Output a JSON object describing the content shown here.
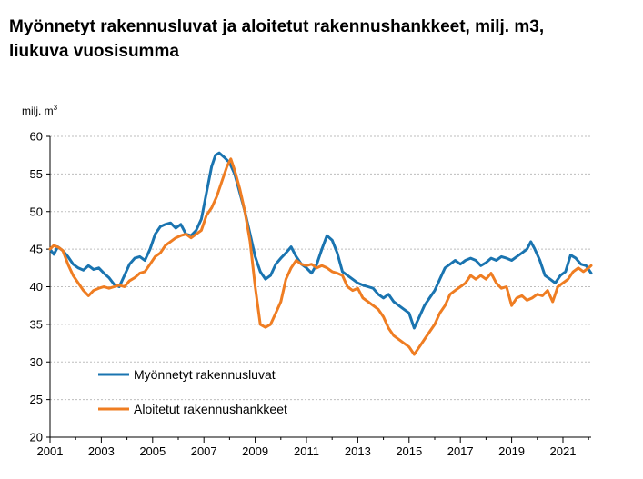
{
  "chart_data": {
    "type": "line",
    "title_line1": "Myönnetyt rakennusluvat ja aloitetut rakennushankkeet, milj. m3,",
    "title_line2": "liukuva vuosisumma",
    "ylabel": "milj. m",
    "ylabel_sup": "3",
    "xlabel": "",
    "ylim": [
      20,
      60
    ],
    "xlim": [
      2001,
      2022.1
    ],
    "yticks": [
      20,
      25,
      30,
      35,
      40,
      45,
      50,
      55,
      60
    ],
    "xticks": [
      2001,
      2003,
      2005,
      2007,
      2009,
      2011,
      2013,
      2015,
      2017,
      2019,
      2021
    ],
    "grid": true,
    "legend_position": "lower-left",
    "series": [
      {
        "name": "Myönnetyt rakennusluvat",
        "color": "#1a74b0",
        "points": [
          [
            2001.0,
            45.0
          ],
          [
            2001.15,
            44.3
          ],
          [
            2001.3,
            45.3
          ],
          [
            2001.5,
            44.8
          ],
          [
            2001.7,
            44.0
          ],
          [
            2001.9,
            43.0
          ],
          [
            2002.1,
            42.5
          ],
          [
            2002.3,
            42.2
          ],
          [
            2002.5,
            42.8
          ],
          [
            2002.7,
            42.3
          ],
          [
            2002.9,
            42.5
          ],
          [
            2003.1,
            41.8
          ],
          [
            2003.3,
            41.2
          ],
          [
            2003.5,
            40.3
          ],
          [
            2003.7,
            40.0
          ],
          [
            2003.9,
            41.5
          ],
          [
            2004.1,
            43.0
          ],
          [
            2004.3,
            43.8
          ],
          [
            2004.5,
            44.0
          ],
          [
            2004.7,
            43.5
          ],
          [
            2004.9,
            45.0
          ],
          [
            2005.1,
            47.0
          ],
          [
            2005.3,
            48.0
          ],
          [
            2005.5,
            48.3
          ],
          [
            2005.7,
            48.5
          ],
          [
            2005.9,
            47.8
          ],
          [
            2006.1,
            48.3
          ],
          [
            2006.3,
            47.0
          ],
          [
            2006.5,
            46.8
          ],
          [
            2006.7,
            47.5
          ],
          [
            2006.9,
            49.0
          ],
          [
            2007.1,
            52.5
          ],
          [
            2007.3,
            56.0
          ],
          [
            2007.45,
            57.5
          ],
          [
            2007.6,
            57.8
          ],
          [
            2007.8,
            57.2
          ],
          [
            2008.0,
            56.5
          ],
          [
            2008.2,
            55.0
          ],
          [
            2008.4,
            52.5
          ],
          [
            2008.6,
            50.0
          ],
          [
            2008.8,
            47.0
          ],
          [
            2009.0,
            44.0
          ],
          [
            2009.2,
            42.0
          ],
          [
            2009.4,
            41.0
          ],
          [
            2009.6,
            41.5
          ],
          [
            2009.8,
            43.0
          ],
          [
            2010.0,
            43.8
          ],
          [
            2010.2,
            44.5
          ],
          [
            2010.4,
            45.3
          ],
          [
            2010.6,
            44.0
          ],
          [
            2010.8,
            43.0
          ],
          [
            2011.0,
            42.5
          ],
          [
            2011.2,
            41.8
          ],
          [
            2011.4,
            43.0
          ],
          [
            2011.6,
            45.0
          ],
          [
            2011.8,
            46.8
          ],
          [
            2012.0,
            46.2
          ],
          [
            2012.2,
            44.5
          ],
          [
            2012.4,
            42.0
          ],
          [
            2012.6,
            41.5
          ],
          [
            2012.8,
            41.0
          ],
          [
            2013.0,
            40.5
          ],
          [
            2013.2,
            40.2
          ],
          [
            2013.4,
            40.0
          ],
          [
            2013.6,
            39.8
          ],
          [
            2013.8,
            39.0
          ],
          [
            2014.0,
            38.5
          ],
          [
            2014.2,
            39.0
          ],
          [
            2014.4,
            38.0
          ],
          [
            2014.6,
            37.5
          ],
          [
            2014.8,
            37.0
          ],
          [
            2015.0,
            36.5
          ],
          [
            2015.2,
            34.5
          ],
          [
            2015.4,
            36.0
          ],
          [
            2015.6,
            37.5
          ],
          [
            2015.8,
            38.5
          ],
          [
            2016.0,
            39.5
          ],
          [
            2016.2,
            41.0
          ],
          [
            2016.4,
            42.5
          ],
          [
            2016.6,
            43.0
          ],
          [
            2016.8,
            43.5
          ],
          [
            2017.0,
            43.0
          ],
          [
            2017.2,
            43.5
          ],
          [
            2017.4,
            43.8
          ],
          [
            2017.6,
            43.5
          ],
          [
            2017.8,
            42.8
          ],
          [
            2018.0,
            43.2
          ],
          [
            2018.2,
            43.8
          ],
          [
            2018.4,
            43.5
          ],
          [
            2018.6,
            44.0
          ],
          [
            2018.8,
            43.8
          ],
          [
            2019.0,
            43.5
          ],
          [
            2019.2,
            44.0
          ],
          [
            2019.4,
            44.5
          ],
          [
            2019.6,
            45.0
          ],
          [
            2019.75,
            46.0
          ],
          [
            2019.9,
            45.0
          ],
          [
            2020.1,
            43.5
          ],
          [
            2020.3,
            41.5
          ],
          [
            2020.5,
            41.0
          ],
          [
            2020.7,
            40.5
          ],
          [
            2020.9,
            41.5
          ],
          [
            2021.1,
            42.0
          ],
          [
            2021.3,
            44.2
          ],
          [
            2021.5,
            43.8
          ],
          [
            2021.7,
            43.0
          ],
          [
            2021.9,
            42.8
          ],
          [
            2022.1,
            41.8
          ]
        ]
      },
      {
        "name": "Aloitetut rakennushankkeet",
        "color": "#ef7d22",
        "points": [
          [
            2001.0,
            45.0
          ],
          [
            2001.15,
            45.5
          ],
          [
            2001.35,
            45.2
          ],
          [
            2001.5,
            44.8
          ],
          [
            2001.7,
            43.0
          ],
          [
            2001.9,
            41.5
          ],
          [
            2002.1,
            40.5
          ],
          [
            2002.3,
            39.5
          ],
          [
            2002.5,
            38.8
          ],
          [
            2002.7,
            39.5
          ],
          [
            2002.9,
            39.8
          ],
          [
            2003.1,
            40.0
          ],
          [
            2003.3,
            39.8
          ],
          [
            2003.5,
            40.0
          ],
          [
            2003.7,
            40.2
          ],
          [
            2003.9,
            40.0
          ],
          [
            2004.1,
            40.8
          ],
          [
            2004.3,
            41.2
          ],
          [
            2004.5,
            41.8
          ],
          [
            2004.7,
            42.0
          ],
          [
            2004.9,
            43.0
          ],
          [
            2005.1,
            44.0
          ],
          [
            2005.3,
            44.5
          ],
          [
            2005.5,
            45.5
          ],
          [
            2005.7,
            46.0
          ],
          [
            2005.9,
            46.5
          ],
          [
            2006.1,
            46.8
          ],
          [
            2006.3,
            47.0
          ],
          [
            2006.5,
            46.5
          ],
          [
            2006.7,
            47.0
          ],
          [
            2006.9,
            47.5
          ],
          [
            2007.1,
            49.5
          ],
          [
            2007.3,
            50.5
          ],
          [
            2007.5,
            52.0
          ],
          [
            2007.7,
            54.0
          ],
          [
            2007.9,
            56.0
          ],
          [
            2008.05,
            57.0
          ],
          [
            2008.2,
            55.5
          ],
          [
            2008.4,
            53.0
          ],
          [
            2008.6,
            50.0
          ],
          [
            2008.8,
            46.0
          ],
          [
            2009.0,
            40.0
          ],
          [
            2009.2,
            35.0
          ],
          [
            2009.4,
            34.6
          ],
          [
            2009.6,
            35.0
          ],
          [
            2009.8,
            36.5
          ],
          [
            2010.0,
            38.0
          ],
          [
            2010.2,
            41.0
          ],
          [
            2010.4,
            42.5
          ],
          [
            2010.6,
            43.5
          ],
          [
            2010.8,
            43.0
          ],
          [
            2011.0,
            42.8
          ],
          [
            2011.2,
            43.0
          ],
          [
            2011.4,
            42.5
          ],
          [
            2011.6,
            42.8
          ],
          [
            2011.8,
            42.5
          ],
          [
            2012.0,
            42.0
          ],
          [
            2012.2,
            41.8
          ],
          [
            2012.4,
            41.5
          ],
          [
            2012.6,
            40.0
          ],
          [
            2012.8,
            39.5
          ],
          [
            2013.0,
            39.8
          ],
          [
            2013.2,
            38.5
          ],
          [
            2013.4,
            38.0
          ],
          [
            2013.6,
            37.5
          ],
          [
            2013.8,
            37.0
          ],
          [
            2014.0,
            36.0
          ],
          [
            2014.2,
            34.5
          ],
          [
            2014.4,
            33.5
          ],
          [
            2014.6,
            33.0
          ],
          [
            2014.8,
            32.5
          ],
          [
            2015.0,
            32.0
          ],
          [
            2015.2,
            31.0
          ],
          [
            2015.4,
            32.0
          ],
          [
            2015.6,
            33.0
          ],
          [
            2015.8,
            34.0
          ],
          [
            2016.0,
            35.0
          ],
          [
            2016.2,
            36.5
          ],
          [
            2016.4,
            37.5
          ],
          [
            2016.6,
            39.0
          ],
          [
            2016.8,
            39.5
          ],
          [
            2017.0,
            40.0
          ],
          [
            2017.2,
            40.5
          ],
          [
            2017.4,
            41.5
          ],
          [
            2017.6,
            41.0
          ],
          [
            2017.8,
            41.5
          ],
          [
            2018.0,
            41.0
          ],
          [
            2018.2,
            41.8
          ],
          [
            2018.4,
            40.5
          ],
          [
            2018.6,
            39.8
          ],
          [
            2018.8,
            40.0
          ],
          [
            2019.0,
            37.5
          ],
          [
            2019.2,
            38.5
          ],
          [
            2019.4,
            38.8
          ],
          [
            2019.6,
            38.2
          ],
          [
            2019.8,
            38.5
          ],
          [
            2020.0,
            39.0
          ],
          [
            2020.2,
            38.8
          ],
          [
            2020.4,
            39.5
          ],
          [
            2020.6,
            38.0
          ],
          [
            2020.8,
            40.0
          ],
          [
            2021.0,
            40.5
          ],
          [
            2021.2,
            41.0
          ],
          [
            2021.4,
            42.0
          ],
          [
            2021.6,
            42.5
          ],
          [
            2021.8,
            42.0
          ],
          [
            2022.0,
            42.5
          ],
          [
            2022.1,
            42.8
          ]
        ]
      }
    ]
  }
}
